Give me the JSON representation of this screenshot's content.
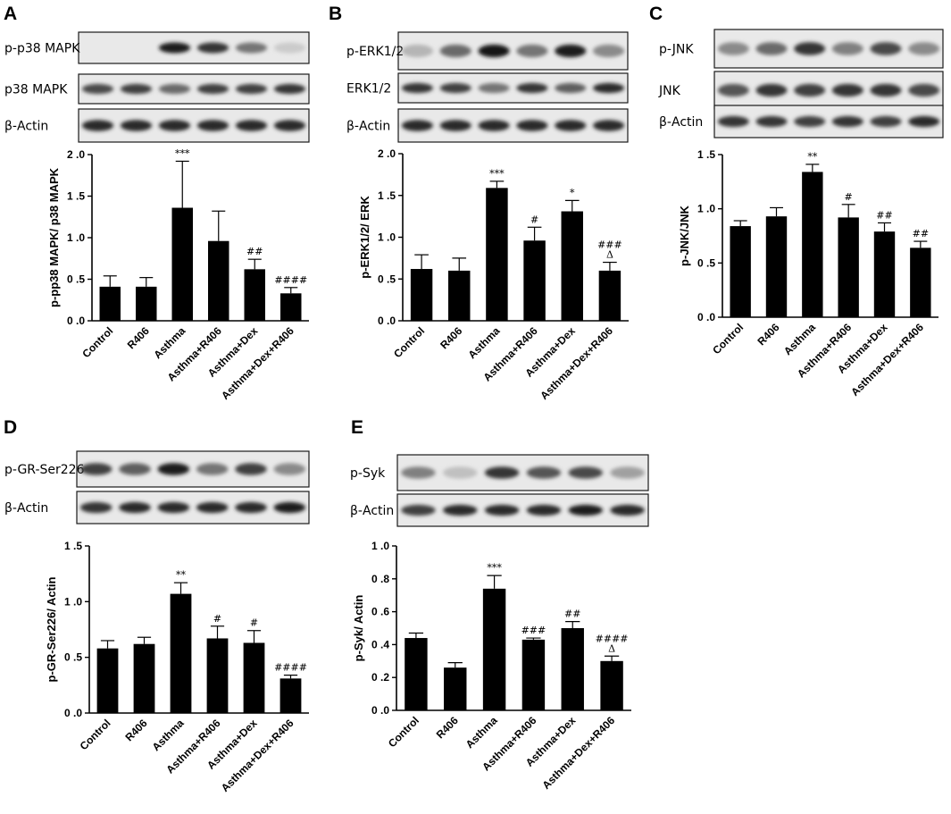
{
  "panels": [
    {
      "letter": "A",
      "blot_rows": [
        "p-p38 MAPK",
        "p38 MAPK",
        "β-Actin"
      ],
      "band_intensity": [
        [
          0.0,
          0.0,
          0.95,
          0.85,
          0.55,
          0.15
        ],
        [
          0.75,
          0.8,
          0.6,
          0.8,
          0.8,
          0.85
        ],
        [
          0.9,
          0.9,
          0.9,
          0.9,
          0.9,
          0.9
        ]
      ]
    },
    {
      "letter": "B",
      "blot_rows": [
        "p-ERK1/2",
        "ERK1/2",
        "β-Actin"
      ],
      "band_intensity": [
        [
          0.25,
          0.6,
          1.0,
          0.55,
          0.95,
          0.45
        ],
        [
          0.85,
          0.8,
          0.55,
          0.85,
          0.65,
          0.9
        ],
        [
          0.9,
          0.9,
          0.9,
          0.9,
          0.9,
          0.9
        ]
      ]
    },
    {
      "letter": "C",
      "blot_rows": [
        "p-JNK",
        "JNK",
        "β-Actin"
      ],
      "band_intensity": [
        [
          0.45,
          0.6,
          0.85,
          0.5,
          0.75,
          0.45
        ],
        [
          0.7,
          0.85,
          0.8,
          0.85,
          0.85,
          0.75
        ],
        [
          0.85,
          0.85,
          0.8,
          0.85,
          0.8,
          0.9
        ]
      ]
    },
    {
      "letter": "D",
      "blot_rows": [
        "p-GR-Ser226",
        "β-Actin"
      ],
      "band_intensity": [
        [
          0.8,
          0.65,
          0.95,
          0.55,
          0.8,
          0.45
        ],
        [
          0.85,
          0.9,
          0.9,
          0.9,
          0.9,
          0.95
        ]
      ]
    },
    {
      "letter": "E",
      "blot_rows": [
        "p-Syk",
        "β-Actin"
      ],
      "band_intensity": [
        [
          0.5,
          0.2,
          0.85,
          0.7,
          0.75,
          0.35
        ],
        [
          0.8,
          0.9,
          0.9,
          0.9,
          0.95,
          0.9
        ]
      ]
    }
  ],
  "chart_data": [
    {
      "type": "bar",
      "panel": "A",
      "categories": [
        "Control",
        "R406",
        "Asthma",
        "Asthma+R406",
        "Asthma+Dex",
        "Asthma+Dex+R406"
      ],
      "values": [
        0.41,
        0.41,
        1.36,
        0.96,
        0.62,
        0.33
      ],
      "errors": [
        0.13,
        0.11,
        0.56,
        0.36,
        0.12,
        0.07
      ],
      "annotations": [
        "",
        "",
        "***",
        "",
        "##",
        "####"
      ],
      "ylabel": "p-pp38 MAPK/ p38 MAPK",
      "yticks": [
        "0 .0",
        "0 .5",
        "1 .0",
        "1 .5",
        "2 .0"
      ],
      "ylim": [
        0,
        2.0
      ]
    },
    {
      "type": "bar",
      "panel": "B",
      "categories": [
        "Control",
        "R406",
        "Asthma",
        "Asthma+R406",
        "Asthma+Dex",
        "Asthma+Dex+R406"
      ],
      "values": [
        0.62,
        0.6,
        1.59,
        0.96,
        1.31,
        0.6
      ],
      "errors": [
        0.17,
        0.15,
        0.08,
        0.16,
        0.13,
        0.1
      ],
      "annotations": [
        "",
        "",
        "***",
        "#",
        "*",
        "###\nΔ"
      ],
      "ylabel": "p-ERK1/2/ ERK",
      "yticks": [
        "0 .0",
        "0 .5",
        "1 .0",
        "1 .5",
        "2 .0"
      ],
      "ylim": [
        0,
        2.0
      ]
    },
    {
      "type": "bar",
      "panel": "C",
      "categories": [
        "Control",
        "R406",
        "Asthma",
        "Asthma+R406",
        "Asthma+Dex",
        "Asthma+Dex+R406"
      ],
      "values": [
        0.84,
        0.93,
        1.34,
        0.92,
        0.79,
        0.64
      ],
      "errors": [
        0.05,
        0.08,
        0.07,
        0.12,
        0.08,
        0.06
      ],
      "annotations": [
        "",
        "",
        "**",
        "#",
        "##",
        "##"
      ],
      "ylabel": "p-JNK/JNK",
      "yticks": [
        "0 .0",
        "0 .5",
        "1 .0",
        "1 .5"
      ],
      "ylim": [
        0,
        1.5
      ]
    },
    {
      "type": "bar",
      "panel": "D",
      "categories": [
        "Control",
        "R406",
        "Asthma",
        "Asthma+R406",
        "Asthma+Dex",
        "Asthma+Dex+R406"
      ],
      "values": [
        0.58,
        0.62,
        1.07,
        0.67,
        0.63,
        0.31
      ],
      "errors": [
        0.07,
        0.06,
        0.1,
        0.11,
        0.11,
        0.03
      ],
      "annotations": [
        "",
        "",
        "**",
        "#",
        "#",
        "####"
      ],
      "ylabel": "p-GR-Ser226/ Actin",
      "yticks": [
        "0 .0",
        "0 .5",
        "1 .0",
        "1 .5"
      ],
      "ylim": [
        0,
        1.5
      ]
    },
    {
      "type": "bar",
      "panel": "E",
      "categories": [
        "Control",
        "R406",
        "Asthma",
        "Asthma+R406",
        "Asthma+Dex",
        "Asthma+Dex+R406"
      ],
      "values": [
        0.44,
        0.26,
        0.74,
        0.43,
        0.5,
        0.3
      ],
      "errors": [
        0.03,
        0.03,
        0.08,
        0.01,
        0.04,
        0.03
      ],
      "annotations": [
        "",
        "",
        "***",
        "###",
        "##",
        "####\nΔ"
      ],
      "ylabel": "p-Syk/ Actin",
      "yticks": [
        "0 .0",
        "0 .2",
        "0 .4",
        "0 .6",
        "0 .8",
        "1 .0"
      ],
      "ylim": [
        0,
        1.0
      ]
    }
  ]
}
